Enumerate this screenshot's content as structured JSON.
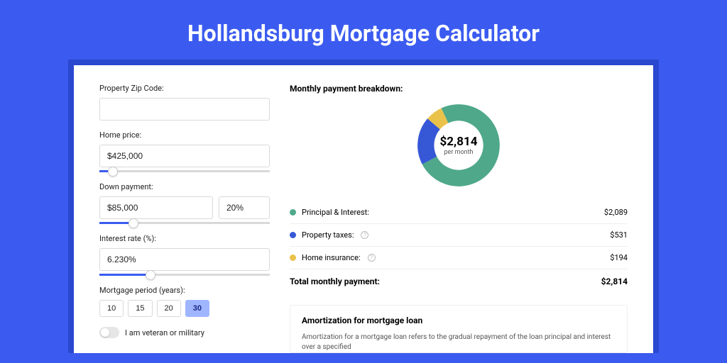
{
  "page": {
    "title": "Hollandsburg Mortgage Calculator",
    "colors": {
      "page_bg": "#3b5bf0",
      "outer_bg": "#2a47cf",
      "card_bg": "#ffffff",
      "accent": "#3b5bf0"
    }
  },
  "form": {
    "zip": {
      "label": "Property Zip Code:",
      "value": ""
    },
    "home_price": {
      "label": "Home price:",
      "value": "$425,000",
      "slider_pct": 8
    },
    "down_payment": {
      "label": "Down payment:",
      "amount": "$85,000",
      "pct": "20%",
      "slider_pct": 20
    },
    "interest": {
      "label": "Interest rate (%):",
      "value": "6.230%",
      "slider_pct": 30
    },
    "period": {
      "label": "Mortgage period (years):",
      "options": [
        "10",
        "15",
        "20",
        "30"
      ],
      "selected": "30"
    },
    "veteran": {
      "label": "I am veteran or military",
      "on": false
    }
  },
  "breakdown": {
    "title": "Monthly payment breakdown:",
    "donut": {
      "center_amount": "$2,814",
      "center_sub": "per month",
      "segments": [
        {
          "name": "principal_interest",
          "pct": 74.2,
          "color": "#4fa88a"
        },
        {
          "name": "property_taxes",
          "pct": 18.9,
          "color": "#3658d6"
        },
        {
          "name": "home_insurance",
          "pct": 6.9,
          "color": "#eac24a"
        }
      ]
    },
    "items": [
      {
        "label": "Principal & Interest:",
        "value": "$2,089",
        "color": "#4fa88a",
        "help": false
      },
      {
        "label": "Property taxes:",
        "value": "$531",
        "color": "#3658d6",
        "help": true
      },
      {
        "label": "Home insurance:",
        "value": "$194",
        "color": "#eac24a",
        "help": true
      }
    ],
    "total": {
      "label": "Total monthly payment:",
      "value": "$2,814"
    }
  },
  "amortization": {
    "title": "Amortization for mortgage loan",
    "body": "Amortization for a mortgage loan refers to the gradual repayment of the loan principal and interest over a specified"
  }
}
